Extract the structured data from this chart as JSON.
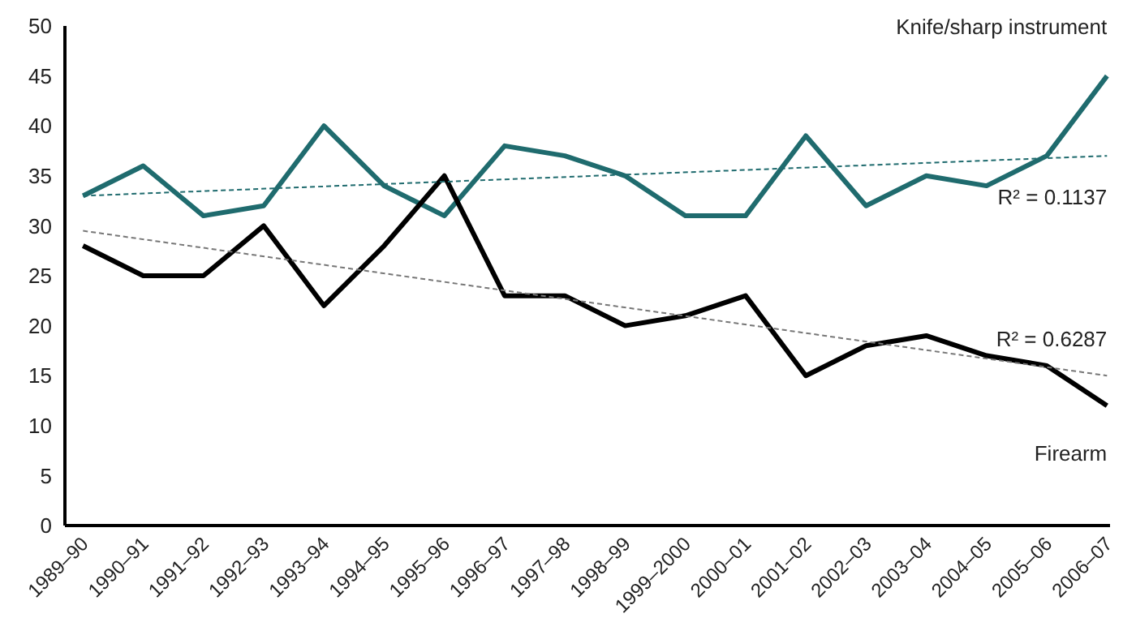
{
  "chart_data": {
    "type": "line",
    "categories": [
      "1989–90",
      "1990–91",
      "1991–92",
      "1992–93",
      "1993–94",
      "1994–95",
      "1995–96",
      "1996–97",
      "1997–98",
      "1998–99",
      "1999–2000",
      "2000–01",
      "2001–02",
      "2002–03",
      "2003–04",
      "2004–05",
      "2005–06",
      "2006–07"
    ],
    "series": [
      {
        "name": "Knife/sharp instrument",
        "color": "#1f6b6e",
        "values": [
          33,
          36,
          31,
          32,
          40,
          34,
          31,
          38,
          37,
          35,
          31,
          31,
          39,
          32,
          35,
          34,
          37,
          45
        ]
      },
      {
        "name": "Firearm",
        "color": "#000000",
        "values": [
          28,
          25,
          25,
          30,
          22,
          28,
          35,
          23,
          23,
          20,
          21,
          23,
          15,
          18,
          19,
          17,
          16,
          12
        ]
      },
      {
        "type": "line",
        "color": "#1f6b6e",
        "line_style": "dashed",
        "x": [
          "1989–90",
          "2006–07"
        ],
        "values": [
          33,
          37
        ]
      },
      {
        "type": "line",
        "color": "#777777",
        "line_style": "dashed",
        "x": [
          "1989–90",
          "2006–07"
        ],
        "values": [
          29.5,
          15
        ]
      }
    ],
    "ylim": [
      0,
      50
    ],
    "yticks": [
      0,
      5,
      10,
      15,
      20,
      25,
      30,
      35,
      40,
      45,
      50
    ],
    "grid": false,
    "legend": false,
    "marker": "none",
    "line_style": "solid",
    "annotations": [
      "R² = 0.1137",
      "R² = 0.6287"
    ]
  }
}
